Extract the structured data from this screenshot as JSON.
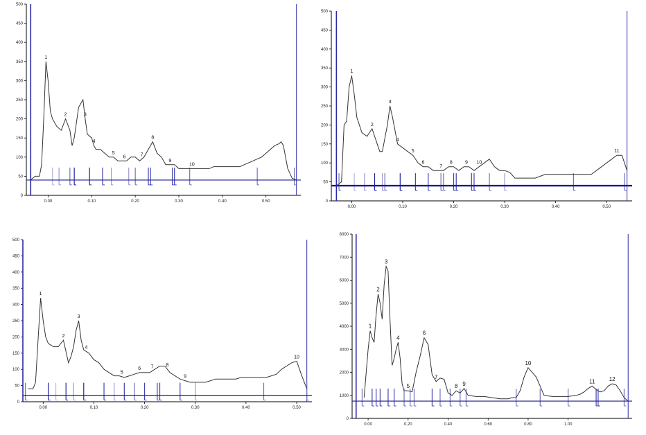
{
  "chart_data": [
    {
      "type": "line",
      "title": "",
      "xlabel": "",
      "ylabel": "",
      "xlim": [
        -0.05,
        0.58
      ],
      "ylim": [
        0,
        50
      ],
      "yticks": [
        0,
        5,
        10,
        15,
        20,
        25,
        30,
        35,
        40,
        45,
        50
      ],
      "ytick_labels": [
        "0",
        "50",
        "100",
        "150",
        "200",
        "250",
        "300",
        "350",
        "400",
        "450",
        "500"
      ],
      "xticks": [
        0.0,
        0.1,
        0.2,
        0.3,
        0.4,
        0.5
      ],
      "xtick_labels": [
        "0.00",
        "0.10",
        "0.20",
        "0.30",
        "0.40",
        "0.50"
      ],
      "baseline_y": 4,
      "bounds_x": [
        -0.04,
        0.57
      ],
      "trace": {
        "x": [
          -0.04,
          -0.03,
          -0.02,
          -0.015,
          -0.01,
          -0.005,
          0.0,
          0.005,
          0.01,
          0.02,
          0.03,
          0.04,
          0.05,
          0.055,
          0.06,
          0.07,
          0.08,
          0.085,
          0.09,
          0.1,
          0.105,
          0.11,
          0.12,
          0.13,
          0.14,
          0.15,
          0.16,
          0.17,
          0.18,
          0.19,
          0.2,
          0.21,
          0.22,
          0.23,
          0.24,
          0.25,
          0.26,
          0.27,
          0.28,
          0.29,
          0.3,
          0.31,
          0.32,
          0.33,
          0.34,
          0.35,
          0.36,
          0.37,
          0.38,
          0.39,
          0.4,
          0.41,
          0.42,
          0.43,
          0.44,
          0.45,
          0.46,
          0.47,
          0.48,
          0.49,
          0.5,
          0.51,
          0.52,
          0.53,
          0.535,
          0.54,
          0.545,
          0.55,
          0.56,
          0.57
        ],
        "y": [
          4,
          5,
          5,
          8,
          20,
          35,
          30,
          22,
          20,
          18,
          17,
          20,
          17,
          13,
          15,
          23,
          25,
          20,
          16,
          15,
          13,
          12,
          12,
          11,
          10,
          10,
          9,
          9,
          9,
          10,
          10,
          9,
          10,
          12,
          14,
          11,
          10,
          8,
          8,
          8,
          7,
          7,
          7,
          7,
          7,
          7,
          7,
          7,
          7.5,
          7.5,
          7.5,
          7.5,
          7.5,
          7.5,
          7.5,
          8,
          8.5,
          9,
          9.5,
          10,
          11,
          12,
          13,
          13.5,
          14,
          13,
          10,
          7,
          4.5,
          4
        ]
      },
      "peaks": [
        {
          "label": "1",
          "x": -0.005
        },
        {
          "label": "2",
          "x": 0.04
        },
        {
          "label": "3",
          "x": 0.085
        },
        {
          "label": "4",
          "x": 0.105
        },
        {
          "label": "5",
          "x": 0.15
        },
        {
          "label": "6",
          "x": 0.175
        },
        {
          "label": "7",
          "x": 0.215
        },
        {
          "label": "8",
          "x": 0.24
        },
        {
          "label": "9",
          "x": 0.28
        },
        {
          "label": "10",
          "x": 0.33
        }
      ],
      "markers": [
        {
          "x": 0.01,
          "c": "#b6b6dc"
        },
        {
          "x": 0.025,
          "c": "#9a9ad0"
        },
        {
          "x": 0.05,
          "c": "#7070c0"
        },
        {
          "x": 0.06,
          "c": "#2020a0"
        },
        {
          "x": 0.095,
          "c": "#2020a0"
        },
        {
          "x": 0.125,
          "c": "#4040b0"
        },
        {
          "x": 0.145,
          "c": "#9a9ad0"
        },
        {
          "x": 0.185,
          "c": "#9a9ad0"
        },
        {
          "x": 0.2,
          "c": "#7070c0"
        },
        {
          "x": 0.23,
          "c": "#4040b0"
        },
        {
          "x": 0.235,
          "c": "#4040b0"
        },
        {
          "x": 0.285,
          "c": "#4040b0"
        },
        {
          "x": 0.29,
          "c": "#4040b0"
        },
        {
          "x": 0.325,
          "c": "#7070c0"
        },
        {
          "x": 0.48,
          "c": "#7070c0"
        },
        {
          "x": 0.565,
          "c": "#7070c0"
        }
      ]
    },
    {
      "type": "line",
      "title": "",
      "xlabel": "",
      "ylabel": "",
      "xlim": [
        -0.04,
        0.55
      ],
      "ylim": [
        0,
        50
      ],
      "yticks": [
        0,
        5,
        10,
        15,
        20,
        25,
        30,
        35,
        40,
        45,
        50
      ],
      "ytick_labels": [
        "0",
        "50",
        "100",
        "150",
        "200",
        "250",
        "300",
        "350",
        "400",
        "450",
        "500"
      ],
      "xticks": [
        0.0,
        0.1,
        0.2,
        0.3,
        0.4,
        0.5
      ],
      "xtick_labels": [
        "0.00",
        "0.10",
        "0.20",
        "0.30",
        "0.40",
        "0.50"
      ],
      "baseline_y": 4,
      "bounds_x": [
        -0.03,
        0.54
      ],
      "trace": {
        "x": [
          -0.03,
          -0.02,
          -0.015,
          -0.01,
          -0.005,
          0.0,
          0.005,
          0.01,
          0.02,
          0.03,
          0.04,
          0.05,
          0.055,
          0.06,
          0.07,
          0.075,
          0.08,
          0.09,
          0.1,
          0.11,
          0.12,
          0.13,
          0.14,
          0.15,
          0.16,
          0.17,
          0.18,
          0.19,
          0.2,
          0.21,
          0.22,
          0.23,
          0.24,
          0.25,
          0.26,
          0.27,
          0.28,
          0.29,
          0.3,
          0.31,
          0.32,
          0.33,
          0.34,
          0.35,
          0.36,
          0.37,
          0.38,
          0.39,
          0.4,
          0.41,
          0.42,
          0.43,
          0.44,
          0.45,
          0.46,
          0.47,
          0.48,
          0.49,
          0.5,
          0.51,
          0.52,
          0.53,
          0.54
        ],
        "y": [
          4,
          5,
          20,
          21,
          30,
          33,
          28,
          22,
          18,
          17,
          19,
          15,
          13,
          13,
          20,
          25,
          22,
          15,
          14,
          13,
          12,
          10,
          9,
          9,
          8,
          8,
          8,
          9,
          9,
          8,
          9,
          9,
          8,
          9,
          10,
          11,
          9,
          8,
          8,
          7.5,
          6,
          6,
          6,
          6,
          6,
          6.5,
          7,
          7,
          7,
          7,
          7,
          7,
          7,
          7,
          7,
          7,
          8,
          9,
          10,
          11,
          12,
          12,
          8
        ]
      },
      "peaks": [
        {
          "label": "1",
          "x": 0.0
        },
        {
          "label": "2",
          "x": 0.04
        },
        {
          "label": "3",
          "x": 0.075
        },
        {
          "label": "4",
          "x": 0.09
        },
        {
          "label": "5",
          "x": 0.12
        },
        {
          "label": "6",
          "x": 0.14
        },
        {
          "label": "7",
          "x": 0.175
        },
        {
          "label": "8",
          "x": 0.195
        },
        {
          "label": "9",
          "x": 0.225
        },
        {
          "label": "10",
          "x": 0.25
        },
        {
          "label": "11",
          "x": 0.52
        }
      ],
      "markers": [
        {
          "x": -0.025,
          "c": "#7070c0"
        },
        {
          "x": 0.005,
          "c": "#b6b6dc"
        },
        {
          "x": 0.025,
          "c": "#9a9ad0"
        },
        {
          "x": 0.045,
          "c": "#2020a0"
        },
        {
          "x": 0.06,
          "c": "#9a9ad0"
        },
        {
          "x": 0.065,
          "c": "#7070c0"
        },
        {
          "x": 0.095,
          "c": "#2020a0"
        },
        {
          "x": 0.125,
          "c": "#4040b0"
        },
        {
          "x": 0.15,
          "c": "#4040b0"
        },
        {
          "x": 0.175,
          "c": "#7070c0"
        },
        {
          "x": 0.18,
          "c": "#7070c0"
        },
        {
          "x": 0.2,
          "c": "#4040b0"
        },
        {
          "x": 0.205,
          "c": "#4040b0"
        },
        {
          "x": 0.235,
          "c": "#4040b0"
        },
        {
          "x": 0.24,
          "c": "#4040b0"
        },
        {
          "x": 0.27,
          "c": "#7070c0"
        },
        {
          "x": 0.3,
          "c": "#9a9ad0"
        },
        {
          "x": 0.435,
          "c": "#7070c0"
        },
        {
          "x": 0.535,
          "c": "#7070c0"
        }
      ]
    },
    {
      "type": "line",
      "title": "",
      "xlabel": "",
      "ylabel": "",
      "xlim": [
        -0.04,
        0.53
      ],
      "ylim": [
        0,
        50
      ],
      "yticks": [
        0,
        5,
        10,
        15,
        20,
        25,
        30,
        35,
        40,
        45,
        50
      ],
      "ytick_labels": [
        "0",
        "50",
        "100",
        "150",
        "200",
        "250",
        "300",
        "350",
        "400",
        "450",
        "500"
      ],
      "xticks": [
        0.0,
        0.1,
        0.2,
        0.3,
        0.4,
        0.5
      ],
      "xtick_labels": [
        "0.00",
        "0.10",
        "0.20",
        "0.30",
        "0.40",
        "0.50"
      ],
      "baseline_y": 2,
      "bounds_x": [
        -0.04,
        0.52
      ],
      "trace": {
        "x": [
          -0.03,
          -0.02,
          -0.015,
          -0.01,
          -0.005,
          0.0,
          0.005,
          0.01,
          0.02,
          0.03,
          0.04,
          0.05,
          0.055,
          0.06,
          0.065,
          0.07,
          0.075,
          0.08,
          0.09,
          0.1,
          0.11,
          0.12,
          0.13,
          0.14,
          0.15,
          0.16,
          0.17,
          0.18,
          0.19,
          0.2,
          0.21,
          0.22,
          0.23,
          0.24,
          0.25,
          0.26,
          0.27,
          0.28,
          0.29,
          0.3,
          0.31,
          0.32,
          0.33,
          0.34,
          0.35,
          0.36,
          0.37,
          0.38,
          0.39,
          0.4,
          0.41,
          0.42,
          0.43,
          0.44,
          0.45,
          0.46,
          0.47,
          0.48,
          0.49,
          0.5,
          0.51,
          0.52
        ],
        "y": [
          4,
          4,
          6,
          19,
          32,
          25,
          20,
          18,
          17,
          17,
          19,
          12,
          14,
          17,
          22,
          25,
          19,
          16,
          15,
          13,
          12,
          10,
          9,
          8,
          8,
          7.5,
          8,
          8.5,
          9,
          9,
          9,
          10,
          11,
          11,
          9,
          8,
          7,
          6.5,
          6,
          6,
          6,
          6,
          6.5,
          7,
          7,
          7,
          7,
          7,
          7.5,
          7.5,
          7.5,
          7.5,
          7.5,
          7.5,
          8,
          8.5,
          10,
          11,
          12,
          12.5,
          8,
          4
        ]
      },
      "peaks": [
        {
          "label": "1",
          "x": -0.005
        },
        {
          "label": "2",
          "x": 0.04
        },
        {
          "label": "3",
          "x": 0.07
        },
        {
          "label": "4",
          "x": 0.085
        },
        {
          "label": "5",
          "x": 0.155
        },
        {
          "label": "6",
          "x": 0.19
        },
        {
          "label": "7",
          "x": 0.215
        },
        {
          "label": "8",
          "x": 0.245
        },
        {
          "label": "9",
          "x": 0.28
        },
        {
          "label": "10",
          "x": 0.5
        }
      ],
      "markers": [
        {
          "x": -0.035,
          "c": "#7070c0"
        },
        {
          "x": 0.01,
          "c": "#2020a0"
        },
        {
          "x": 0.025,
          "c": "#b6b6dc"
        },
        {
          "x": 0.045,
          "c": "#2020a0"
        },
        {
          "x": 0.06,
          "c": "#9a9ad0"
        },
        {
          "x": 0.08,
          "c": "#2020a0"
        },
        {
          "x": 0.12,
          "c": "#4040b0"
        },
        {
          "x": 0.14,
          "c": "#9a9ad0"
        },
        {
          "x": 0.16,
          "c": "#4040b0"
        },
        {
          "x": 0.18,
          "c": "#7070c0"
        },
        {
          "x": 0.2,
          "c": "#4040b0"
        },
        {
          "x": 0.225,
          "c": "#4040b0"
        },
        {
          "x": 0.23,
          "c": "#4040b0"
        },
        {
          "x": 0.27,
          "c": "#4040b0"
        },
        {
          "x": 0.3,
          "c": "#9a9ad0"
        },
        {
          "x": 0.435,
          "c": "#7070c0"
        },
        {
          "x": 0.52,
          "c": "#7070c0"
        }
      ]
    },
    {
      "type": "line",
      "title": "",
      "xlabel": "",
      "ylabel": "",
      "xlim": [
        -0.04,
        0.66
      ],
      "ylim": [
        0,
        800
      ],
      "yticks": [
        0,
        100,
        200,
        300,
        400,
        500,
        600,
        700,
        800
      ],
      "ytick_labels": [
        "0",
        "1000",
        "2000",
        "3000",
        "4000",
        "5000",
        "6000",
        "7000",
        "8000"
      ],
      "xticks": [
        0.0,
        0.1,
        0.2,
        0.3,
        0.4,
        0.5
      ],
      "xtick_labels": [
        "0.00",
        "0.20",
        "0.40",
        "0.60",
        "0.80",
        "1.00"
      ],
      "baseline_y": 75,
      "bounds_x": [
        -0.03,
        0.65
      ],
      "trace": {
        "x": [
          -0.01,
          0.0,
          0.005,
          0.01,
          0.015,
          0.02,
          0.025,
          0.03,
          0.035,
          0.04,
          0.045,
          0.05,
          0.055,
          0.06,
          0.065,
          0.07,
          0.075,
          0.08,
          0.085,
          0.09,
          0.1,
          0.11,
          0.12,
          0.13,
          0.14,
          0.15,
          0.16,
          0.17,
          0.18,
          0.19,
          0.2,
          0.21,
          0.22,
          0.23,
          0.24,
          0.25,
          0.27,
          0.29,
          0.31,
          0.33,
          0.35,
          0.36,
          0.37,
          0.38,
          0.39,
          0.4,
          0.42,
          0.44,
          0.46,
          0.48,
          0.5,
          0.52,
          0.53,
          0.54,
          0.55,
          0.56,
          0.57,
          0.58,
          0.59,
          0.6,
          0.61,
          0.62,
          0.63,
          0.64,
          0.65
        ],
        "y": [
          90,
          300,
          380,
          350,
          330,
          450,
          540,
          500,
          430,
          580,
          660,
          640,
          420,
          230,
          260,
          300,
          330,
          260,
          150,
          120,
          120,
          115,
          200,
          270,
          350,
          320,
          190,
          160,
          175,
          170,
          110,
          100,
          120,
          110,
          130,
          100,
          95,
          95,
          90,
          85,
          85,
          90,
          90,
          120,
          180,
          220,
          180,
          100,
          95,
          95,
          95,
          100,
          105,
          115,
          130,
          140,
          125,
          115,
          120,
          140,
          150,
          145,
          120,
          90,
          75
        ]
      },
      "peaks": [
        {
          "label": "1",
          "x": 0.005
        },
        {
          "label": "2",
          "x": 0.025
        },
        {
          "label": "3",
          "x": 0.045
        },
        {
          "label": "4",
          "x": 0.075
        },
        {
          "label": "5",
          "x": 0.1
        },
        {
          "label": "6",
          "x": 0.14
        },
        {
          "label": "7",
          "x": 0.17
        },
        {
          "label": "8",
          "x": 0.22
        },
        {
          "label": "9",
          "x": 0.24
        },
        {
          "label": "10",
          "x": 0.4
        },
        {
          "label": "11",
          "x": 0.56
        },
        {
          "label": "12",
          "x": 0.61
        }
      ],
      "markers": [
        {
          "x": -0.015,
          "c": "#7070c0"
        },
        {
          "x": 0.01,
          "c": "#4040b0"
        },
        {
          "x": 0.02,
          "c": "#4040b0"
        },
        {
          "x": 0.03,
          "c": "#4040b0"
        },
        {
          "x": 0.05,
          "c": "#4040b0"
        },
        {
          "x": 0.065,
          "c": "#4040b0"
        },
        {
          "x": 0.09,
          "c": "#7070c0"
        },
        {
          "x": 0.105,
          "c": "#7070c0"
        },
        {
          "x": 0.115,
          "c": "#7070c0"
        },
        {
          "x": 0.16,
          "c": "#4040b0"
        },
        {
          "x": 0.18,
          "c": "#7070c0"
        },
        {
          "x": 0.205,
          "c": "#7070c0"
        },
        {
          "x": 0.23,
          "c": "#7070c0"
        },
        {
          "x": 0.245,
          "c": "#7070c0"
        },
        {
          "x": 0.37,
          "c": "#7070c0"
        },
        {
          "x": 0.43,
          "c": "#7070c0"
        },
        {
          "x": 0.5,
          "c": "#7070c0"
        },
        {
          "x": 0.57,
          "c": "#4040b0"
        },
        {
          "x": 0.575,
          "c": "#4040b0"
        },
        {
          "x": 0.64,
          "c": "#7070c0"
        }
      ]
    }
  ],
  "colors": {
    "trace": "#333333",
    "baseline": "#1a1a8c",
    "boundary": "#2a2aa8",
    "axis": "#000000"
  }
}
